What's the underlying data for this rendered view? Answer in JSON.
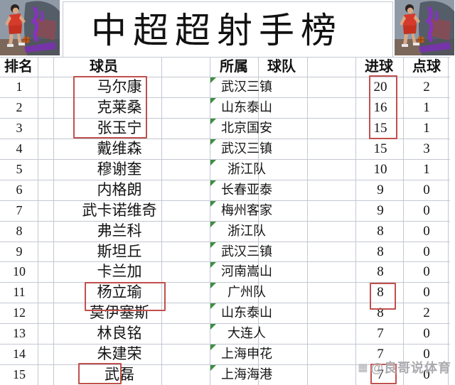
{
  "title": "中超超射手榜",
  "header_labels": {
    "rank": "排名",
    "player": "球员",
    "club_1": "所属",
    "club_2": "球队",
    "goals": "进球",
    "penalties": "点球"
  },
  "watermark": {
    "icon": "grid-logo-icon",
    "icon_glyph": "▦",
    "text": "@良哥说体育"
  },
  "corner_images": {
    "left": "slam-dunk-basketball-player-artwork",
    "right": "slam-dunk-basketball-player-artwork"
  },
  "colors": {
    "highlight_box": "#c0504d",
    "grid_line": "#c3c8d2",
    "comment_triangle": "#3e8e41",
    "text": "#141414"
  },
  "annotations": {
    "red_highlight_boxes": [
      {
        "target": "player",
        "ranks": "1-3"
      },
      {
        "target": "goals",
        "ranks": "1-3"
      },
      {
        "target": "player",
        "ranks": "11"
      },
      {
        "target": "goals",
        "ranks": "11"
      },
      {
        "target": "player",
        "ranks": "15"
      },
      {
        "target": "goals",
        "ranks": "15"
      }
    ],
    "cell_comment_markers": "green triangle on top-left of every team cell"
  },
  "chart_data": {
    "type": "table",
    "title": "中超超射手榜",
    "columns": [
      "排名",
      "球员",
      "所属球队",
      "进球",
      "点球"
    ],
    "rows": [
      [
        1,
        "马尔康",
        "武汉三镇",
        20,
        2
      ],
      [
        2,
        "克莱桑",
        "山东泰山",
        16,
        1
      ],
      [
        3,
        "张玉宁",
        "北京国安",
        15,
        1
      ],
      [
        4,
        "戴维森",
        "武汉三镇",
        15,
        3
      ],
      [
        5,
        "穆谢奎",
        "浙江队",
        10,
        1
      ],
      [
        6,
        "内格朗",
        "长春亚泰",
        9,
        0
      ],
      [
        7,
        "武卡诺维奇",
        "梅州客家",
        9,
        0
      ],
      [
        8,
        "弗兰科",
        "浙江队",
        8,
        0
      ],
      [
        9,
        "斯坦丘",
        "武汉三镇",
        8,
        0
      ],
      [
        10,
        "卡兰加",
        "河南嵩山",
        8,
        0
      ],
      [
        11,
        "杨立瑜",
        "广州队",
        8,
        0
      ],
      [
        12,
        "莫伊塞斯",
        "山东泰山",
        8,
        2
      ],
      [
        13,
        "林良铭",
        "大连人",
        7,
        0
      ],
      [
        14,
        "朱建荣",
        "上海申花",
        7,
        0
      ],
      [
        15,
        "武磊",
        "上海海港",
        7,
        0
      ]
    ]
  }
}
